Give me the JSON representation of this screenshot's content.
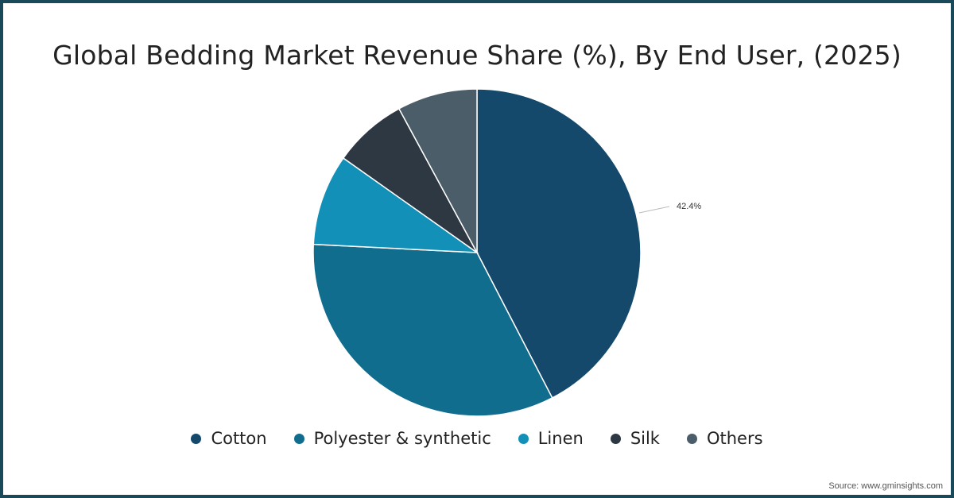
{
  "chart_data": {
    "type": "pie",
    "title": "Global Bedding Market Revenue Share (%), By End User, (2025)",
    "categories": [
      "Cotton",
      "Polyester & synthetic",
      "Linen",
      "Silk",
      "Others"
    ],
    "values": [
      42.4,
      33.4,
      9.0,
      7.3,
      7.9
    ],
    "colors": [
      "#14496b",
      "#116d8e",
      "#1290b8",
      "#2d3843",
      "#4c5d6a"
    ],
    "data_labels": [
      {
        "category": "Cotton",
        "text": "42.4%"
      }
    ],
    "legend_position": "bottom"
  },
  "title": "Global Bedding Market Revenue Share (%), By End User, (2025)",
  "label_cotton": "42.4%",
  "legend": {
    "items": [
      {
        "label": "Cotton",
        "color": "#14496b"
      },
      {
        "label": "Polyester & synthetic",
        "color": "#116d8e"
      },
      {
        "label": "Linen",
        "color": "#1290b8"
      },
      {
        "label": "Silk",
        "color": "#2d3843"
      },
      {
        "label": "Others",
        "color": "#4c5d6a"
      }
    ]
  },
  "source": "Source: www.gminsights.com"
}
